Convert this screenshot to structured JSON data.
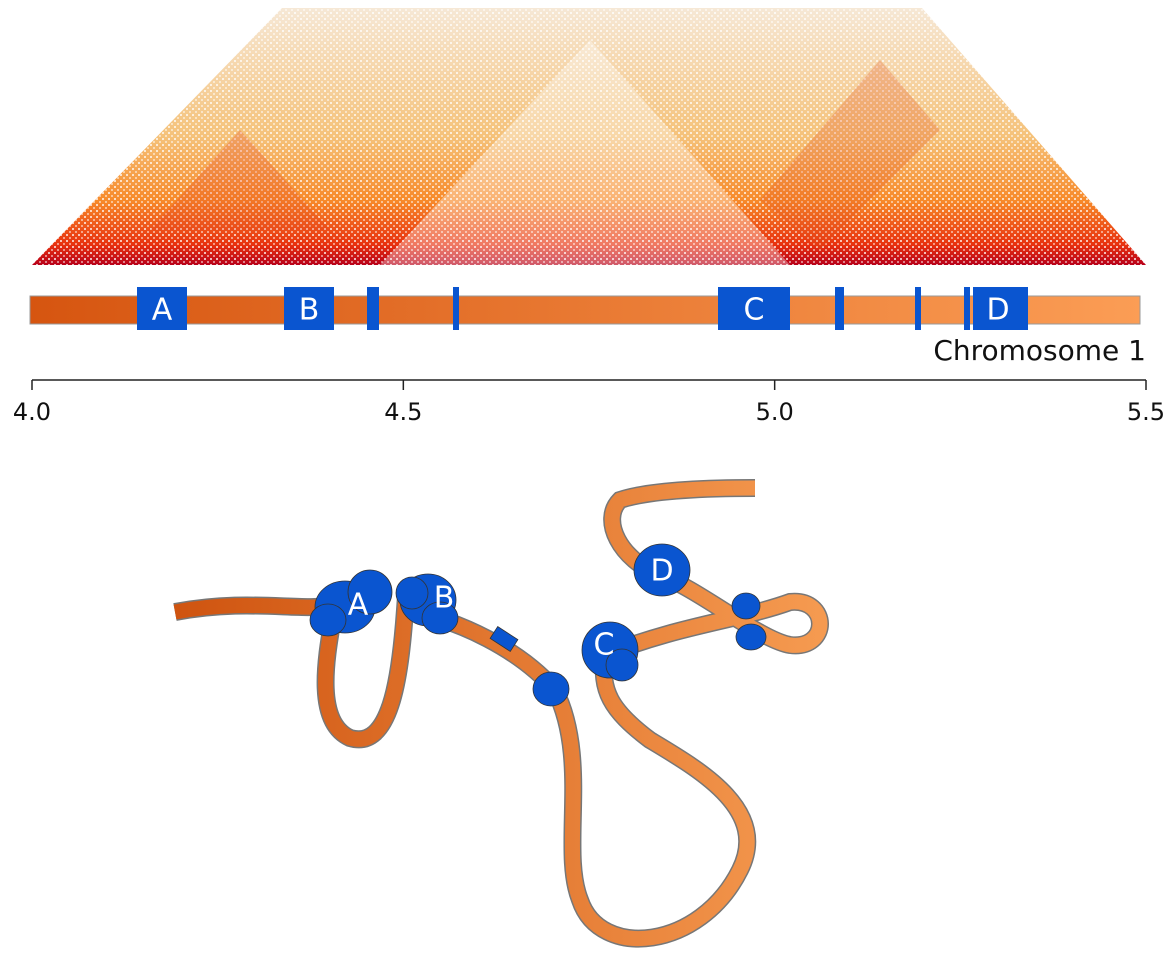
{
  "genome_bar": {
    "sites": [
      "A",
      "B",
      "C",
      "D"
    ],
    "label": "Chromosome 1"
  },
  "axis": {
    "ticks": [
      {
        "value": 4.0,
        "label": "4.0"
      },
      {
        "value": 4.5,
        "label": "4.5"
      },
      {
        "value": 5.0,
        "label": "5.0"
      },
      {
        "value": 5.5,
        "label": "5.5"
      }
    ]
  },
  "structure": {
    "sites": [
      "A",
      "B",
      "C",
      "D"
    ]
  }
}
